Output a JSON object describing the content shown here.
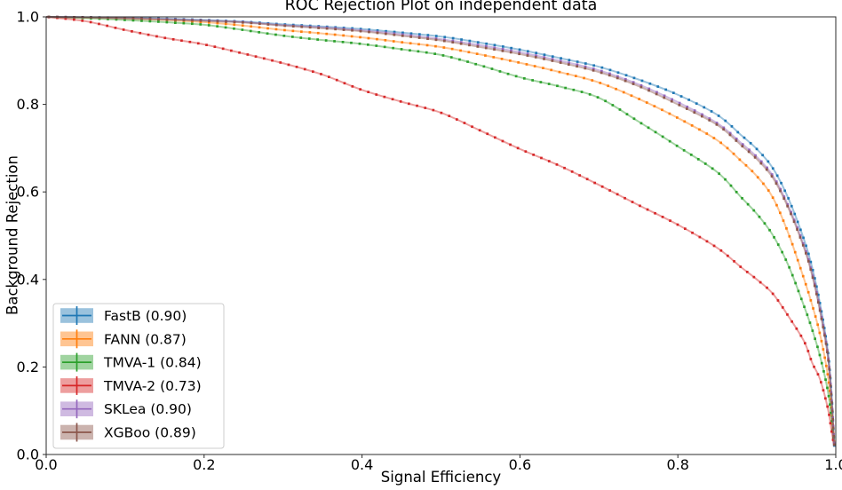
{
  "figure": {
    "title": "ROC Rejection Plot on independent data",
    "xlabel": "Signal Efficiency",
    "ylabel": "Background Rejection"
  },
  "chart_data": {
    "type": "line",
    "title": "ROC Rejection Plot on independent data",
    "xlabel": "Signal Efficiency",
    "ylabel": "Background Rejection",
    "xlim": [
      0.0,
      1.0
    ],
    "ylim": [
      0.0,
      1.0
    ],
    "grid": false,
    "legend_position": "lower left",
    "x_tick_labels": [
      "0.0",
      "0.2",
      "0.4",
      "0.6",
      "0.8",
      "1.0"
    ],
    "y_tick_labels": [
      "0.0",
      "0.2",
      "0.4",
      "0.6",
      "0.8",
      "1.0"
    ],
    "x_ticks": [
      0.0,
      0.2,
      0.4,
      0.6,
      0.8,
      1.0
    ],
    "y_ticks": [
      0.0,
      0.2,
      0.4,
      0.6,
      0.8,
      1.0
    ],
    "marker_style": "small-square",
    "line_alpha": 0.45,
    "x": [
      0.0,
      0.05,
      0.1,
      0.15,
      0.2,
      0.25,
      0.3,
      0.35,
      0.4,
      0.45,
      0.5,
      0.55,
      0.6,
      0.65,
      0.7,
      0.75,
      0.8,
      0.85,
      0.88,
      0.9,
      0.92,
      0.94,
      0.96,
      0.97,
      0.98,
      0.99,
      0.995,
      0.998
    ],
    "series": [
      {
        "name": "FastB",
        "auc": "0.90",
        "legend_label": "FastB (0.90)",
        "color": "#1f77b4",
        "y": [
          1.0,
          0.999,
          0.998,
          0.996,
          0.993,
          0.989,
          0.983,
          0.978,
          0.972,
          0.964,
          0.955,
          0.941,
          0.925,
          0.906,
          0.886,
          0.857,
          0.822,
          0.776,
          0.73,
          0.698,
          0.655,
          0.585,
          0.49,
          0.428,
          0.345,
          0.235,
          0.125,
          0.02
        ]
      },
      {
        "name": "FANN",
        "auc": "0.87",
        "legend_label": "FANN (0.87)",
        "color": "#ff7f0e",
        "y": [
          1.0,
          0.998,
          0.996,
          0.993,
          0.988,
          0.98,
          0.97,
          0.962,
          0.953,
          0.942,
          0.931,
          0.914,
          0.895,
          0.874,
          0.85,
          0.813,
          0.769,
          0.718,
          0.671,
          0.636,
          0.588,
          0.505,
          0.4,
          0.342,
          0.275,
          0.18,
          0.095,
          0.02
        ]
      },
      {
        "name": "TMVA-1",
        "auc": "0.84",
        "legend_label": "TMVA-1 (0.84)",
        "color": "#2ca02c",
        "y": [
          1.0,
          0.997,
          0.993,
          0.988,
          0.982,
          0.97,
          0.957,
          0.947,
          0.938,
          0.926,
          0.913,
          0.889,
          0.862,
          0.841,
          0.815,
          0.761,
          0.704,
          0.645,
          0.588,
          0.55,
          0.502,
          0.432,
          0.338,
          0.286,
          0.225,
          0.145,
          0.075,
          0.02
        ]
      },
      {
        "name": "TMVA-2",
        "auc": "0.73",
        "legend_label": "TMVA-2 (0.73)",
        "color": "#d62728",
        "y": [
          1.0,
          0.99,
          0.97,
          0.952,
          0.937,
          0.916,
          0.894,
          0.868,
          0.833,
          0.806,
          0.781,
          0.74,
          0.698,
          0.66,
          0.616,
          0.57,
          0.525,
          0.472,
          0.428,
          0.4,
          0.368,
          0.316,
          0.258,
          0.21,
          0.172,
          0.105,
          0.05,
          0.02
        ]
      },
      {
        "name": "SKLea",
        "auc": "0.90",
        "legend_label": "SKLea (0.90)",
        "color": "#9467bd",
        "y": [
          1.0,
          0.999,
          0.997,
          0.995,
          0.992,
          0.988,
          0.981,
          0.976,
          0.969,
          0.96,
          0.949,
          0.935,
          0.919,
          0.9,
          0.878,
          0.846,
          0.805,
          0.757,
          0.712,
          0.68,
          0.638,
          0.568,
          0.476,
          0.415,
          0.333,
          0.228,
          0.12,
          0.02
        ]
      },
      {
        "name": "XGBoo",
        "auc": "0.89",
        "legend_label": "XGBoo (0.89)",
        "color": "#8c564b",
        "y": [
          1.0,
          0.999,
          0.997,
          0.994,
          0.991,
          0.987,
          0.98,
          0.974,
          0.967,
          0.957,
          0.946,
          0.931,
          0.915,
          0.896,
          0.874,
          0.842,
          0.8,
          0.753,
          0.707,
          0.675,
          0.633,
          0.563,
          0.471,
          0.41,
          0.328,
          0.224,
          0.117,
          0.02
        ]
      }
    ]
  }
}
